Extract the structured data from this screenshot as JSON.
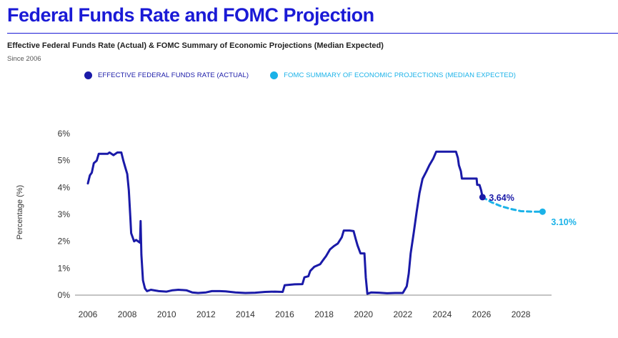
{
  "header": {
    "title": "Federal Funds Rate and FOMC Projection",
    "subtitle": "Effective Federal Funds Rate (Actual) & FOMC Summary of Economic Projections (Median Expected)",
    "since": "Since 2006"
  },
  "colors": {
    "title": "#1a1ad6",
    "actual": "#1a1aa8",
    "projection": "#1ab2e8",
    "axis": "#333333"
  },
  "chart_data": {
    "type": "line",
    "title": "Federal Funds Rate and FOMC Projection",
    "xlabel": "",
    "ylabel": "Percentage (%)",
    "xlim": [
      2006,
      2029.8
    ],
    "ylim": [
      0,
      6
    ],
    "x_ticks": [
      2006,
      2008,
      2010,
      2012,
      2014,
      2016,
      2018,
      2020,
      2022,
      2024,
      2026,
      2028
    ],
    "x_tick_labels": [
      "2006",
      "2008",
      "2010",
      "2012",
      "2014",
      "2016",
      "2018",
      "2020",
      "2022",
      "2024",
      "2026",
      "2028"
    ],
    "y_ticks": [
      0,
      1,
      2,
      3,
      4,
      5,
      6
    ],
    "y_tick_labels": [
      "0%",
      "1%",
      "2%",
      "3%",
      "4%",
      "5%",
      "6%"
    ],
    "legend_position": "top",
    "series": [
      {
        "name": "EFFECTIVE FEDERAL FUNDS RATE (ACTUAL)",
        "style": "solid",
        "end_label": "3.64%",
        "points": [
          [
            2006.0,
            4.15
          ],
          [
            2006.1,
            4.45
          ],
          [
            2006.2,
            4.55
          ],
          [
            2006.3,
            4.9
          ],
          [
            2006.45,
            5.0
          ],
          [
            2006.55,
            5.25
          ],
          [
            2007.0,
            5.25
          ],
          [
            2007.1,
            5.3
          ],
          [
            2007.3,
            5.2
          ],
          [
            2007.5,
            5.3
          ],
          [
            2007.7,
            5.3
          ],
          [
            2007.8,
            5.0
          ],
          [
            2007.9,
            4.75
          ],
          [
            2008.0,
            4.5
          ],
          [
            2008.08,
            3.9
          ],
          [
            2008.15,
            3.0
          ],
          [
            2008.2,
            2.3
          ],
          [
            2008.35,
            2.0
          ],
          [
            2008.45,
            2.05
          ],
          [
            2008.55,
            2.0
          ],
          [
            2008.65,
            1.95
          ],
          [
            2008.68,
            2.75
          ],
          [
            2008.72,
            1.5
          ],
          [
            2008.8,
            0.55
          ],
          [
            2008.9,
            0.25
          ],
          [
            2009.0,
            0.15
          ],
          [
            2009.2,
            0.2
          ],
          [
            2009.6,
            0.15
          ],
          [
            2010.0,
            0.13
          ],
          [
            2010.3,
            0.18
          ],
          [
            2010.6,
            0.2
          ],
          [
            2011.0,
            0.18
          ],
          [
            2011.3,
            0.1
          ],
          [
            2011.6,
            0.08
          ],
          [
            2012.0,
            0.1
          ],
          [
            2012.3,
            0.15
          ],
          [
            2012.7,
            0.15
          ],
          [
            2013.0,
            0.14
          ],
          [
            2013.5,
            0.1
          ],
          [
            2014.0,
            0.08
          ],
          [
            2014.5,
            0.09
          ],
          [
            2015.0,
            0.12
          ],
          [
            2015.5,
            0.13
          ],
          [
            2015.9,
            0.12
          ],
          [
            2016.0,
            0.37
          ],
          [
            2016.5,
            0.4
          ],
          [
            2016.9,
            0.41
          ],
          [
            2017.0,
            0.66
          ],
          [
            2017.2,
            0.7
          ],
          [
            2017.3,
            0.9
          ],
          [
            2017.5,
            1.05
          ],
          [
            2017.8,
            1.15
          ],
          [
            2017.95,
            1.3
          ],
          [
            2018.1,
            1.45
          ],
          [
            2018.3,
            1.7
          ],
          [
            2018.5,
            1.82
          ],
          [
            2018.7,
            1.92
          ],
          [
            2018.9,
            2.15
          ],
          [
            2019.0,
            2.4
          ],
          [
            2019.3,
            2.4
          ],
          [
            2019.5,
            2.38
          ],
          [
            2019.6,
            2.1
          ],
          [
            2019.7,
            1.85
          ],
          [
            2019.85,
            1.55
          ],
          [
            2020.05,
            1.55
          ],
          [
            2020.12,
            0.65
          ],
          [
            2020.2,
            0.05
          ],
          [
            2020.4,
            0.1
          ],
          [
            2020.8,
            0.09
          ],
          [
            2021.2,
            0.07
          ],
          [
            2021.6,
            0.08
          ],
          [
            2022.0,
            0.08
          ],
          [
            2022.2,
            0.33
          ],
          [
            2022.3,
            0.8
          ],
          [
            2022.4,
            1.55
          ],
          [
            2022.55,
            2.3
          ],
          [
            2022.7,
            3.08
          ],
          [
            2022.85,
            3.8
          ],
          [
            2023.0,
            4.32
          ],
          [
            2023.2,
            4.6
          ],
          [
            2023.35,
            4.83
          ],
          [
            2023.55,
            5.08
          ],
          [
            2023.7,
            5.33
          ],
          [
            2024.0,
            5.33
          ],
          [
            2024.7,
            5.33
          ],
          [
            2024.8,
            5.1
          ],
          [
            2024.85,
            4.83
          ],
          [
            2024.95,
            4.6
          ],
          [
            2025.0,
            4.33
          ],
          [
            2025.5,
            4.33
          ],
          [
            2025.75,
            4.33
          ],
          [
            2025.78,
            4.1
          ],
          [
            2025.9,
            4.09
          ],
          [
            2025.98,
            3.9
          ],
          [
            2026.05,
            3.64
          ]
        ]
      },
      {
        "name": "FOMC SUMMARY OF ECONOMIC PROJECTIONS (MEDIAN EXPECTED)",
        "style": "dashed",
        "end_label": "3.10%",
        "points": [
          [
            2026.05,
            3.64
          ],
          [
            2026.5,
            3.45
          ],
          [
            2027.0,
            3.3
          ],
          [
            2027.5,
            3.2
          ],
          [
            2028.0,
            3.12
          ],
          [
            2028.6,
            3.1
          ],
          [
            2029.1,
            3.1
          ]
        ]
      }
    ]
  }
}
